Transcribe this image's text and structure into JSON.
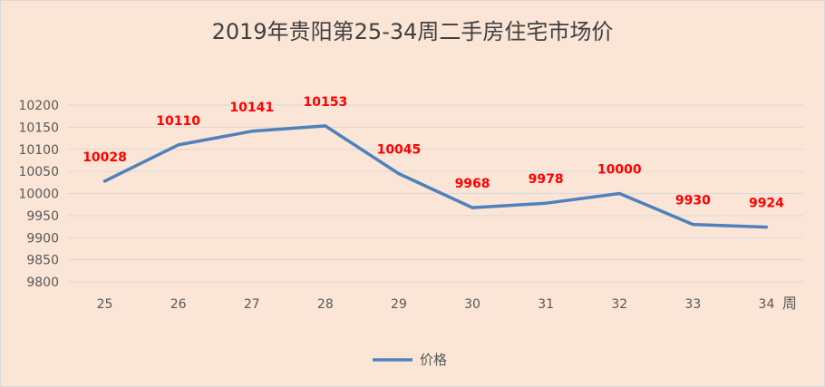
{
  "chart_data": {
    "type": "line",
    "title": "2019年贵阳第25-34周二手房住宅市场价",
    "xlabel": "周",
    "ylabel": "",
    "categories": [
      "25",
      "26",
      "27",
      "28",
      "29",
      "30",
      "31",
      "32",
      "33",
      "34"
    ],
    "series": [
      {
        "name": "价格",
        "values": [
          10028,
          10110,
          10141,
          10153,
          10045,
          9968,
          9978,
          10000,
          9930,
          9924
        ],
        "labels": [
          "10028",
          "10110",
          "10141",
          "10153",
          "10045",
          "9968",
          "9978",
          "10000",
          "9930",
          "9924"
        ],
        "color": "#4f81bd"
      }
    ],
    "ylim": [
      9800,
      10200
    ],
    "yticks": [
      "9800",
      "9850",
      "9900",
      "9950",
      "10000",
      "10050",
      "10100",
      "10150",
      "10200"
    ],
    "grid": true,
    "legend": "bottom",
    "data_label_color": "#ff0000",
    "background": "#fbe5d6"
  }
}
